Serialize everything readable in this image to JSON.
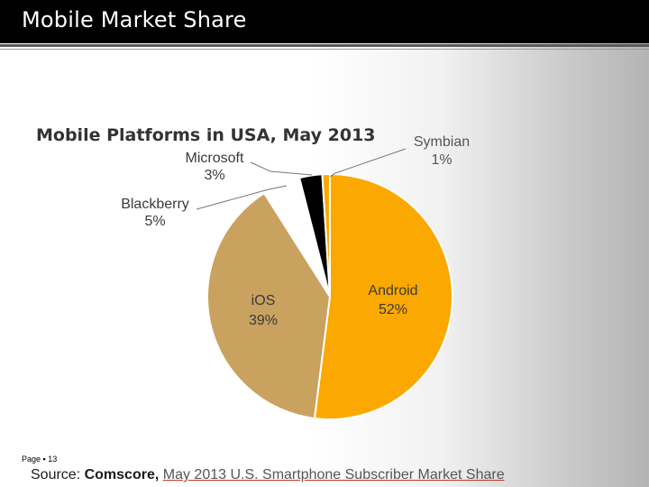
{
  "slide": {
    "title": "Mobile Market Share",
    "page_label": "Page",
    "page_number": "13",
    "source_prefix": "Source: ",
    "source_org": "Comscore,",
    "source_link": "May 2013 U.S. Smartphone Subscriber Market Share"
  },
  "colors": {
    "android": "#FBA800",
    "ios": "#C9A260",
    "blackberry": "#FFFFFF",
    "microsoft": "#000000",
    "symbian": "#FBA800",
    "title_bar": "#000000"
  },
  "chart_data": {
    "type": "pie",
    "title": "Mobile Platforms in USA, May 2013",
    "slices": [
      {
        "name": "Android",
        "value": 52,
        "label": "52%"
      },
      {
        "name": "iOS",
        "value": 39,
        "label": "39%"
      },
      {
        "name": "Blackberry",
        "value": 5,
        "label": "5%"
      },
      {
        "name": "Microsoft",
        "value": 3,
        "label": "3%"
      },
      {
        "name": "Symbian",
        "value": 1,
        "label": "1%"
      }
    ]
  }
}
